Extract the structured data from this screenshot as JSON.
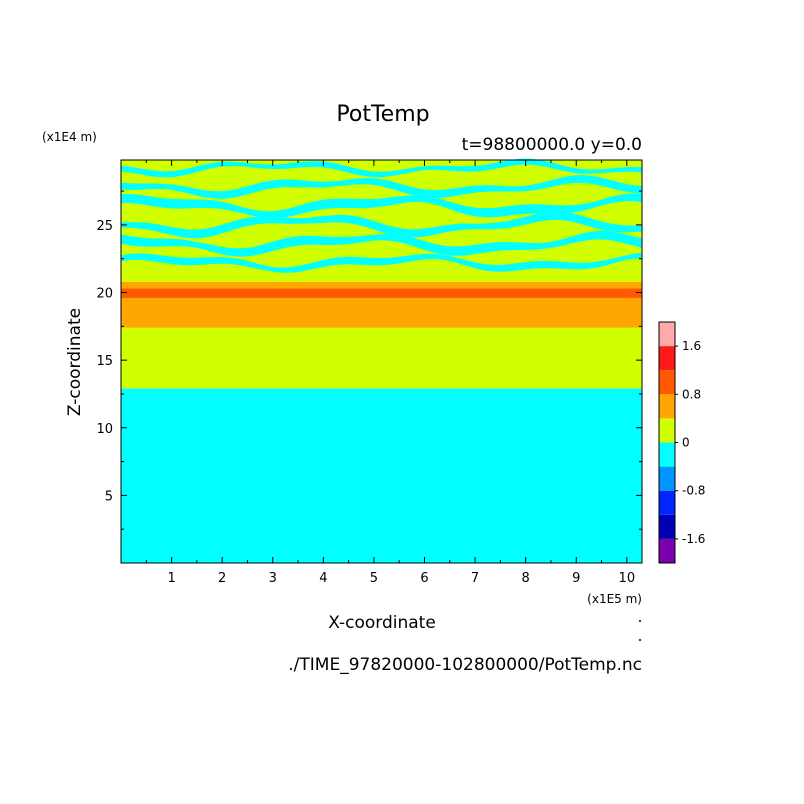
{
  "chart_data": {
    "type": "heatmap",
    "title": "PotTemp",
    "subtitle": "t=98800000.0 y=0.0",
    "xlabel": "X-coordinate",
    "ylabel": "Z-coordinate",
    "x_unit": "(x1E5 m)",
    "y_unit": "(x1E4 m)",
    "source_file": "./TIME_97820000-102800000/PotTemp.nc",
    "xlim": [
      0,
      10.3
    ],
    "ylim": [
      0,
      29.8
    ],
    "x_ticks": [
      1,
      2,
      3,
      4,
      5,
      6,
      7,
      8,
      9,
      10
    ],
    "y_ticks": [
      5,
      10,
      15,
      20,
      25
    ],
    "grid": false,
    "colorbar": {
      "labels": [
        "1.6",
        "0.8",
        "0",
        "-0.8",
        "-1.6"
      ],
      "label_values": [
        1.6,
        0.8,
        0,
        -0.8,
        -1.6
      ],
      "levels": [
        -2.0,
        -1.6,
        -1.2,
        -0.8,
        -0.4,
        0,
        0.4,
        0.8,
        1.2,
        1.6,
        2.0
      ],
      "colors": [
        "#7a00b0",
        "#0000b4",
        "#0026ff",
        "#0096ff",
        "#00ffff",
        "#d0ff00",
        "#ffa600",
        "#ff5a00",
        "#ff1a1a",
        "#ffaaaa"
      ]
    },
    "bands": [
      {
        "z_min": 0.0,
        "z_max": 12.9,
        "level": "-0.4 to 0",
        "color": "#00ffff"
      },
      {
        "z_min": 12.9,
        "z_max": 17.4,
        "level": "0 to 0.4",
        "color": "#d0ff00"
      },
      {
        "z_min": 17.4,
        "z_max": 19.6,
        "level": "0.4 to 0.8",
        "color": "#ffa600"
      },
      {
        "z_min": 19.6,
        "z_max": 20.3,
        "level": "0.8 to 1.2",
        "color": "#ff5a00"
      },
      {
        "z_min": 20.3,
        "z_max": 20.8,
        "level": "0.4 to 0.8",
        "color": "#ffa600"
      },
      {
        "z_min": 20.8,
        "z_max": 29.8,
        "level": "0 to 0.4 with -0.4 to 0 layers",
        "color": "#d0ff00"
      }
    ],
    "upper_layers": [
      {
        "z": 22.2,
        "thickness": 0.55,
        "amp": 0.35,
        "phase": 0.5
      },
      {
        "z": 23.6,
        "thickness": 0.7,
        "amp": 0.45,
        "phase": 1.8
      },
      {
        "z": 25.0,
        "thickness": 0.65,
        "amp": 0.5,
        "phase": 3.1
      },
      {
        "z": 26.4,
        "thickness": 0.7,
        "amp": 0.45,
        "phase": 0.9
      },
      {
        "z": 27.8,
        "thickness": 0.6,
        "amp": 0.4,
        "phase": 2.4
      },
      {
        "z": 29.2,
        "thickness": 0.45,
        "amp": 0.3,
        "phase": 4.0
      }
    ]
  }
}
